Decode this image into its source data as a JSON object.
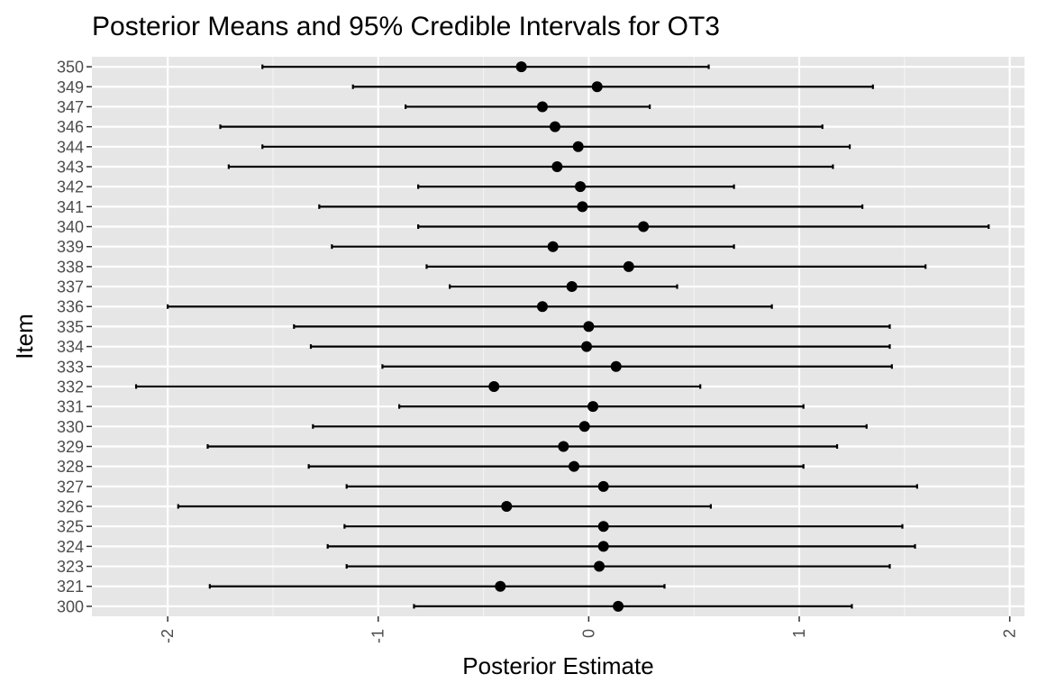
{
  "chart_data": {
    "type": "errorbar",
    "title": "Posterior Means and 95% Credible Intervals for OT3",
    "xlabel": "Posterior Estimate",
    "ylabel": "Item",
    "xlim": [
      -2.36,
      2.07
    ],
    "x_ticks": [
      -2,
      -1,
      0,
      1,
      2
    ],
    "x_tick_labels": [
      "-2",
      "-1",
      "0",
      "1",
      "2"
    ],
    "grid": true,
    "items": [
      {
        "label": "350",
        "mean": -0.32,
        "lower": -1.55,
        "upper": 0.57
      },
      {
        "label": "349",
        "mean": 0.04,
        "lower": -1.12,
        "upper": 1.35
      },
      {
        "label": "347",
        "mean": -0.22,
        "lower": -0.87,
        "upper": 0.29
      },
      {
        "label": "346",
        "mean": -0.16,
        "lower": -1.75,
        "upper": 1.11
      },
      {
        "label": "344",
        "mean": -0.05,
        "lower": -1.55,
        "upper": 1.24
      },
      {
        "label": "343",
        "mean": -0.15,
        "lower": -1.71,
        "upper": 1.16
      },
      {
        "label": "342",
        "mean": -0.04,
        "lower": -0.81,
        "upper": 0.69
      },
      {
        "label": "341",
        "mean": -0.03,
        "lower": -1.28,
        "upper": 1.3
      },
      {
        "label": "340",
        "mean": 0.26,
        "lower": -0.81,
        "upper": 1.9
      },
      {
        "label": "339",
        "mean": -0.17,
        "lower": -1.22,
        "upper": 0.69
      },
      {
        "label": "338",
        "mean": 0.19,
        "lower": -0.77,
        "upper": 1.6
      },
      {
        "label": "337",
        "mean": -0.08,
        "lower": -0.66,
        "upper": 0.42
      },
      {
        "label": "336",
        "mean": -0.22,
        "lower": -2.0,
        "upper": 0.87
      },
      {
        "label": "335",
        "mean": 0.0,
        "lower": -1.4,
        "upper": 1.43
      },
      {
        "label": "334",
        "mean": -0.01,
        "lower": -1.32,
        "upper": 1.43
      },
      {
        "label": "333",
        "mean": 0.13,
        "lower": -0.98,
        "upper": 1.44
      },
      {
        "label": "332",
        "mean": -0.45,
        "lower": -2.15,
        "upper": 0.53
      },
      {
        "label": "331",
        "mean": 0.02,
        "lower": -0.9,
        "upper": 1.02
      },
      {
        "label": "330",
        "mean": -0.02,
        "lower": -1.31,
        "upper": 1.32
      },
      {
        "label": "329",
        "mean": -0.12,
        "lower": -1.81,
        "upper": 1.18
      },
      {
        "label": "328",
        "mean": -0.07,
        "lower": -1.33,
        "upper": 1.02
      },
      {
        "label": "327",
        "mean": 0.07,
        "lower": -1.15,
        "upper": 1.56
      },
      {
        "label": "326",
        "mean": -0.39,
        "lower": -1.95,
        "upper": 0.58
      },
      {
        "label": "325",
        "mean": 0.07,
        "lower": -1.16,
        "upper": 1.49
      },
      {
        "label": "324",
        "mean": 0.07,
        "lower": -1.24,
        "upper": 1.55
      },
      {
        "label": "323",
        "mean": 0.05,
        "lower": -1.15,
        "upper": 1.43
      },
      {
        "label": "321",
        "mean": -0.42,
        "lower": -1.8,
        "upper": 0.36
      },
      {
        "label": "300",
        "mean": 0.14,
        "lower": -0.83,
        "upper": 1.25
      }
    ]
  }
}
